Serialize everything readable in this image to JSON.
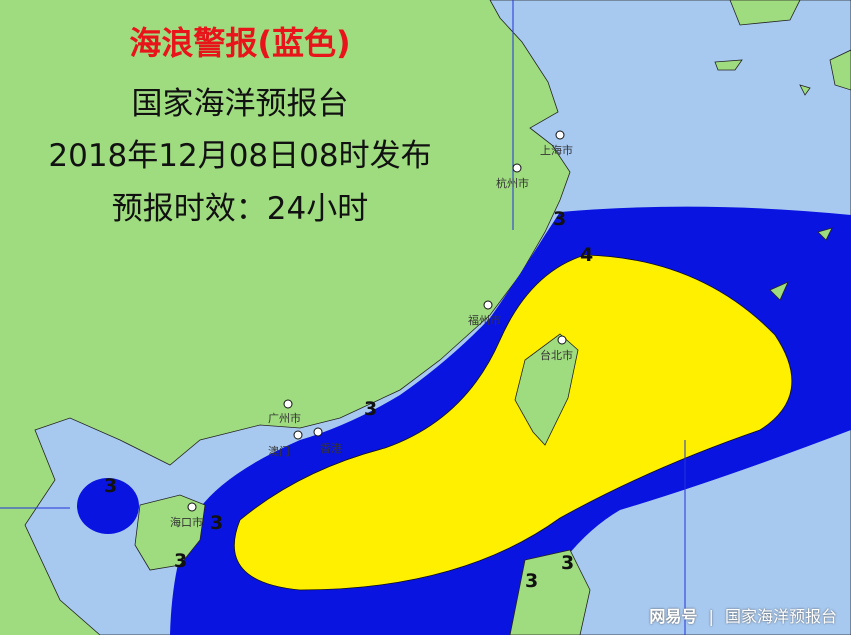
{
  "header": {
    "title": "海浪警报(蓝色)",
    "issuer": "国家海洋预报台",
    "issued": "2018年12月08日08时发布",
    "validity": "预报时效：24小时"
  },
  "colors": {
    "land": "#9fdc80",
    "sea": "#a7c9f0",
    "level3": "#0a14e0",
    "level4": "#fff000",
    "title_red": "#e8141a"
  },
  "cities": [
    "上海市",
    "杭州市",
    "福州市",
    "台北市",
    "广州市",
    "澳门",
    "香港",
    "海口市"
  ],
  "wave_levels": {
    "outer": "3",
    "inner": "4"
  },
  "watermark": {
    "brand": "网易号",
    "separator": "|",
    "account": "国家海洋预报台"
  }
}
